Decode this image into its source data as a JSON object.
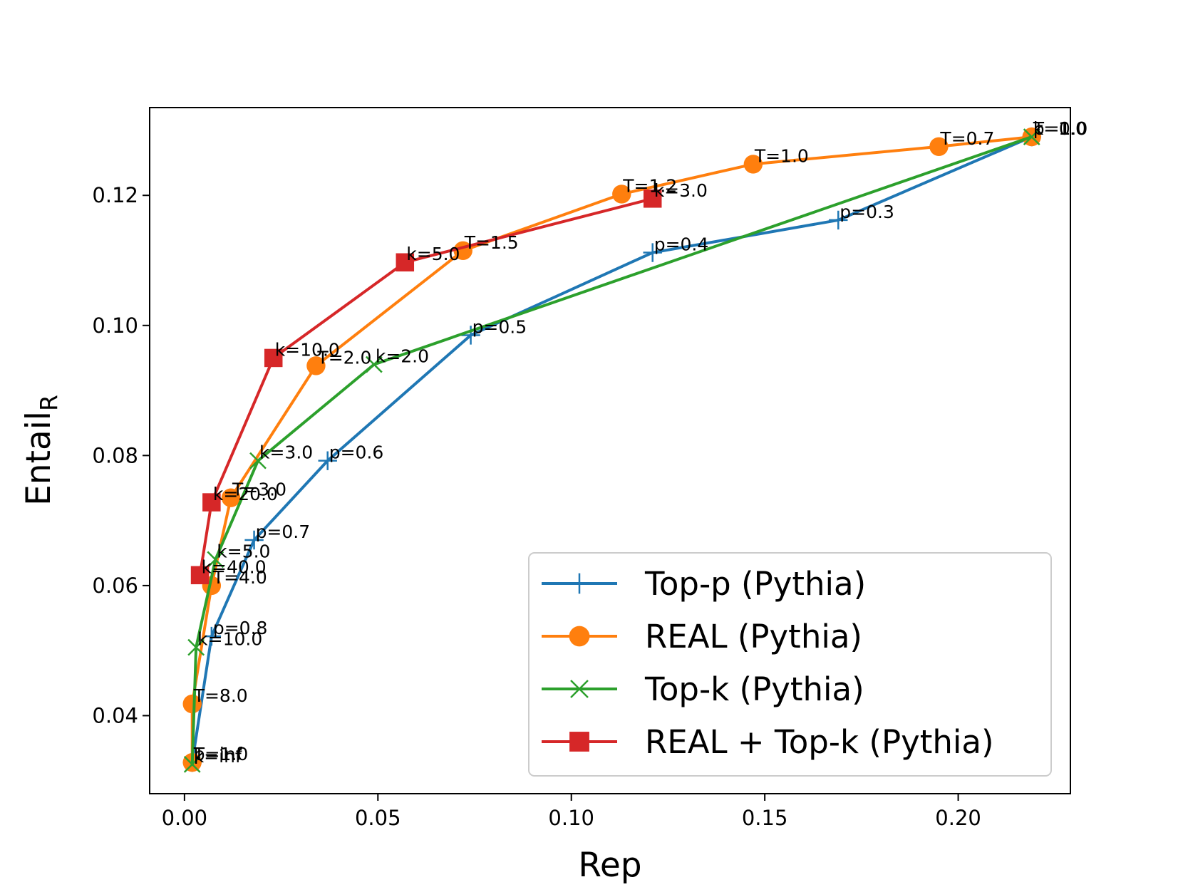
{
  "chart_data": {
    "type": "line",
    "title": "",
    "xlabel": "Rep",
    "ylabel": "Entail",
    "ylabel_sub": "R",
    "xlim": [
      -0.009,
      0.229
    ],
    "ylim": [
      0.028,
      0.1335
    ],
    "xticks": [
      0.0,
      0.05,
      0.1,
      0.15,
      0.2
    ],
    "xtick_labels": [
      "0.00",
      "0.05",
      "0.10",
      "0.15",
      "0.20"
    ],
    "yticks": [
      0.04,
      0.06,
      0.08,
      0.1,
      0.12
    ],
    "ytick_labels": [
      "0.04",
      "0.06",
      "0.08",
      "0.10",
      "0.12"
    ],
    "grid": false,
    "legend_position": "lower-right",
    "series": [
      {
        "name": "Top-p (Pythia)",
        "color": "#1f77b4",
        "marker": "plus",
        "points": [
          {
            "x": 0.219,
            "y": 0.129,
            "label": "p=1.0"
          },
          {
            "x": 0.169,
            "y": 0.1162,
            "label": "p=0.3"
          },
          {
            "x": 0.121,
            "y": 0.1112,
            "label": "p=0.4"
          },
          {
            "x": 0.074,
            "y": 0.0985,
            "label": "p=0.5"
          },
          {
            "x": 0.037,
            "y": 0.0792,
            "label": "p=0.6"
          },
          {
            "x": 0.018,
            "y": 0.067,
            "label": "p=0.7"
          },
          {
            "x": 0.007,
            "y": 0.0522,
            "label": "p=0.8"
          },
          {
            "x": 0.002,
            "y": 0.0328,
            "label": "p=1.0"
          }
        ]
      },
      {
        "name": "REAL (Pythia)",
        "color": "#ff7f0e",
        "marker": "circle",
        "points": [
          {
            "x": 0.219,
            "y": 0.129,
            "label": "T=0.0"
          },
          {
            "x": 0.195,
            "y": 0.1275,
            "label": "T=0.7"
          },
          {
            "x": 0.147,
            "y": 0.1248,
            "label": "T=1.0"
          },
          {
            "x": 0.113,
            "y": 0.1202,
            "label": "T=1.2"
          },
          {
            "x": 0.072,
            "y": 0.1115,
            "label": "T=1.5"
          },
          {
            "x": 0.034,
            "y": 0.0938,
            "label": "T=2.0"
          },
          {
            "x": 0.012,
            "y": 0.0735,
            "label": "T=3.0"
          },
          {
            "x": 0.007,
            "y": 0.06,
            "label": "T=4.0"
          },
          {
            "x": 0.002,
            "y": 0.0418,
            "label": "T=8.0"
          },
          {
            "x": 0.002,
            "y": 0.0328,
            "label": "T=inf"
          }
        ]
      },
      {
        "name": "Top-k (Pythia)",
        "color": "#2ca02c",
        "marker": "x",
        "points": [
          {
            "x": 0.219,
            "y": 0.129,
            "label": "k=1.0"
          },
          {
            "x": 0.049,
            "y": 0.094,
            "label": "k=2.0"
          },
          {
            "x": 0.019,
            "y": 0.0792,
            "label": "k=3.0"
          },
          {
            "x": 0.008,
            "y": 0.064,
            "label": "k=5.0"
          },
          {
            "x": 0.003,
            "y": 0.0505,
            "label": "k=10.0"
          },
          {
            "x": 0.002,
            "y": 0.0325,
            "label": "k=inf"
          }
        ]
      },
      {
        "name": "REAL + Top-k (Pythia)",
        "color": "#d62728",
        "marker": "square",
        "points": [
          {
            "x": 0.121,
            "y": 0.1195,
            "label": "k=3.0"
          },
          {
            "x": 0.057,
            "y": 0.1097,
            "label": "k=5.0"
          },
          {
            "x": 0.023,
            "y": 0.095,
            "label": "k=10.0"
          },
          {
            "x": 0.007,
            "y": 0.0728,
            "label": "k=20.0"
          },
          {
            "x": 0.004,
            "y": 0.0616,
            "label": "k=40.0"
          }
        ]
      }
    ]
  }
}
